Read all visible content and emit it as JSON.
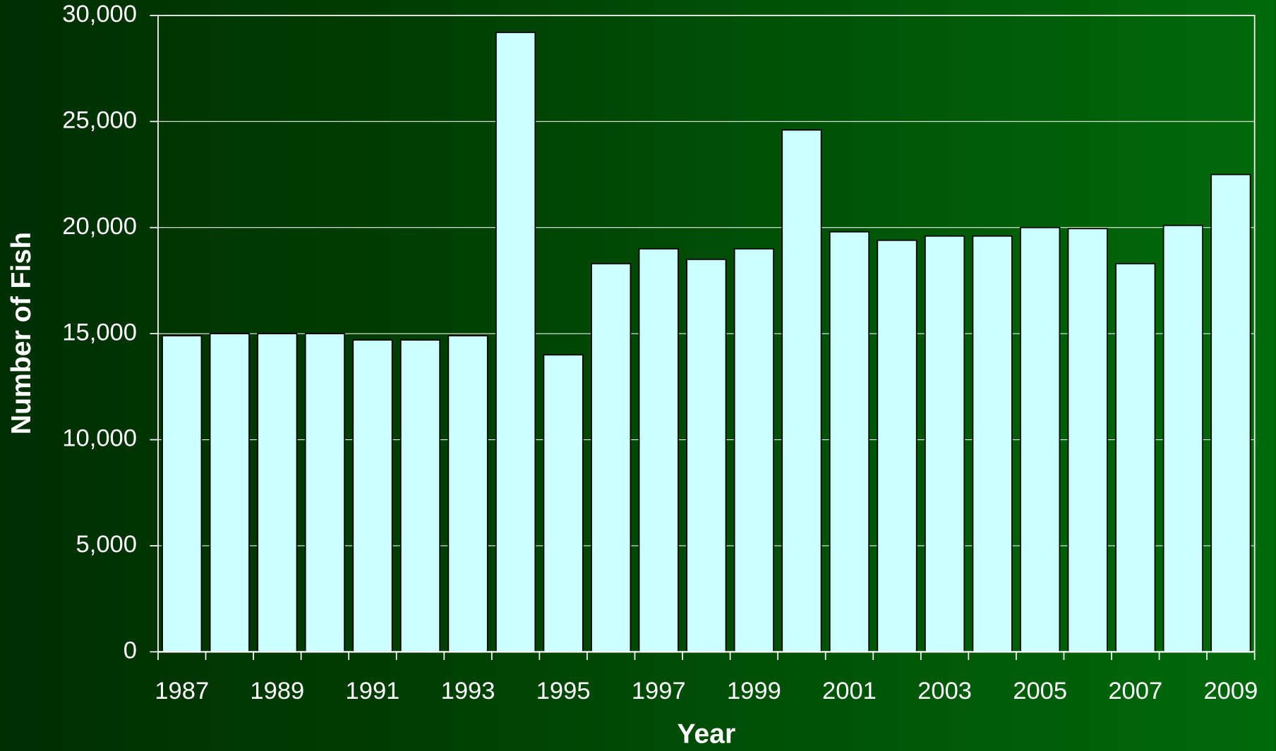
{
  "chart_data": {
    "type": "bar",
    "x_label": "Year",
    "y_label": "Number of Fish",
    "categories": [
      "1987",
      null,
      "1989",
      null,
      "1991",
      null,
      "1993",
      null,
      "1995",
      null,
      "1997",
      null,
      "1999",
      null,
      "2001",
      null,
      "2003",
      null,
      "2005",
      null,
      "2007",
      null,
      "2009"
    ],
    "values": [
      14900,
      15000,
      15000,
      15000,
      14700,
      14700,
      14900,
      29200,
      14000,
      18300,
      19000,
      18500,
      19000,
      24600,
      19800,
      19400,
      19600,
      19600,
      20000,
      19950,
      18300,
      20100,
      22500
    ],
    "color": "#ccffff",
    "ylim": [
      0,
      30000
    ],
    "yticks": [
      0,
      {
        "value": 5000,
        "label": "5,000"
      },
      {
        "value": 10000,
        "label": "10,000"
      },
      {
        "value": 15000,
        "label": "15,000"
      },
      {
        "value": 20000,
        "label": "20,000"
      },
      {
        "value": 25000,
        "label": "25,000"
      },
      {
        "value": 30000,
        "label": "30,000"
      }
    ],
    "grid": true
  }
}
